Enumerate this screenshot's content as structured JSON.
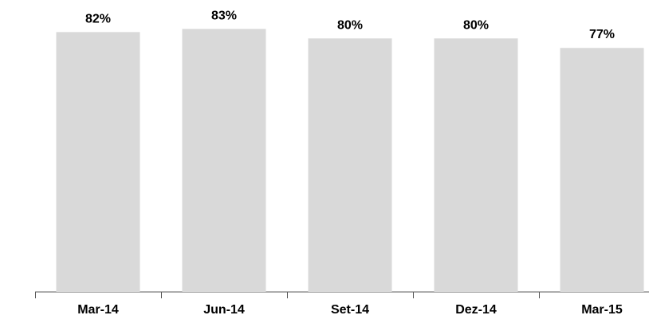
{
  "chart_data": {
    "type": "bar",
    "categories": [
      "Mar-14",
      "Jun-14",
      "Set-14",
      "Dez-14",
      "Mar-15"
    ],
    "values": [
      82,
      83,
      80,
      80,
      77
    ],
    "data_labels": [
      "82%",
      "83%",
      "80%",
      "80%",
      "77%"
    ],
    "title": "",
    "xlabel": "",
    "ylabel": "",
    "ylim": [
      0,
      100
    ],
    "grid": false,
    "legend": "none",
    "colors": {
      "bar": "#d9d9d9",
      "axis": "#595959",
      "text": "#000000"
    }
  }
}
